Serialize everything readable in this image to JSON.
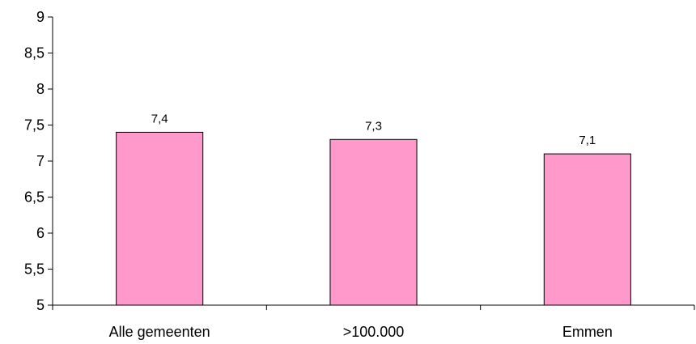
{
  "chart_data": {
    "type": "bar",
    "title": "",
    "xlabel": "",
    "ylabel": "",
    "categories": [
      "Alle gemeenten",
      ">100.000",
      "Emmen"
    ],
    "values": [
      7.4,
      7.3,
      7.1
    ],
    "data_labels": [
      "7,4",
      "7,3",
      "7,1"
    ],
    "ylim": [
      5,
      9
    ],
    "yticks": [
      5,
      5.5,
      6,
      6.5,
      7,
      7.5,
      8,
      8.5,
      9
    ],
    "ytick_labels": [
      "5",
      "5,5",
      "6",
      "6,5",
      "7",
      "7,5",
      "8",
      "8,5",
      "9"
    ],
    "grid": false,
    "legend": "none",
    "bar_color": "#ff99cc",
    "bar_border_color": "#000000"
  }
}
